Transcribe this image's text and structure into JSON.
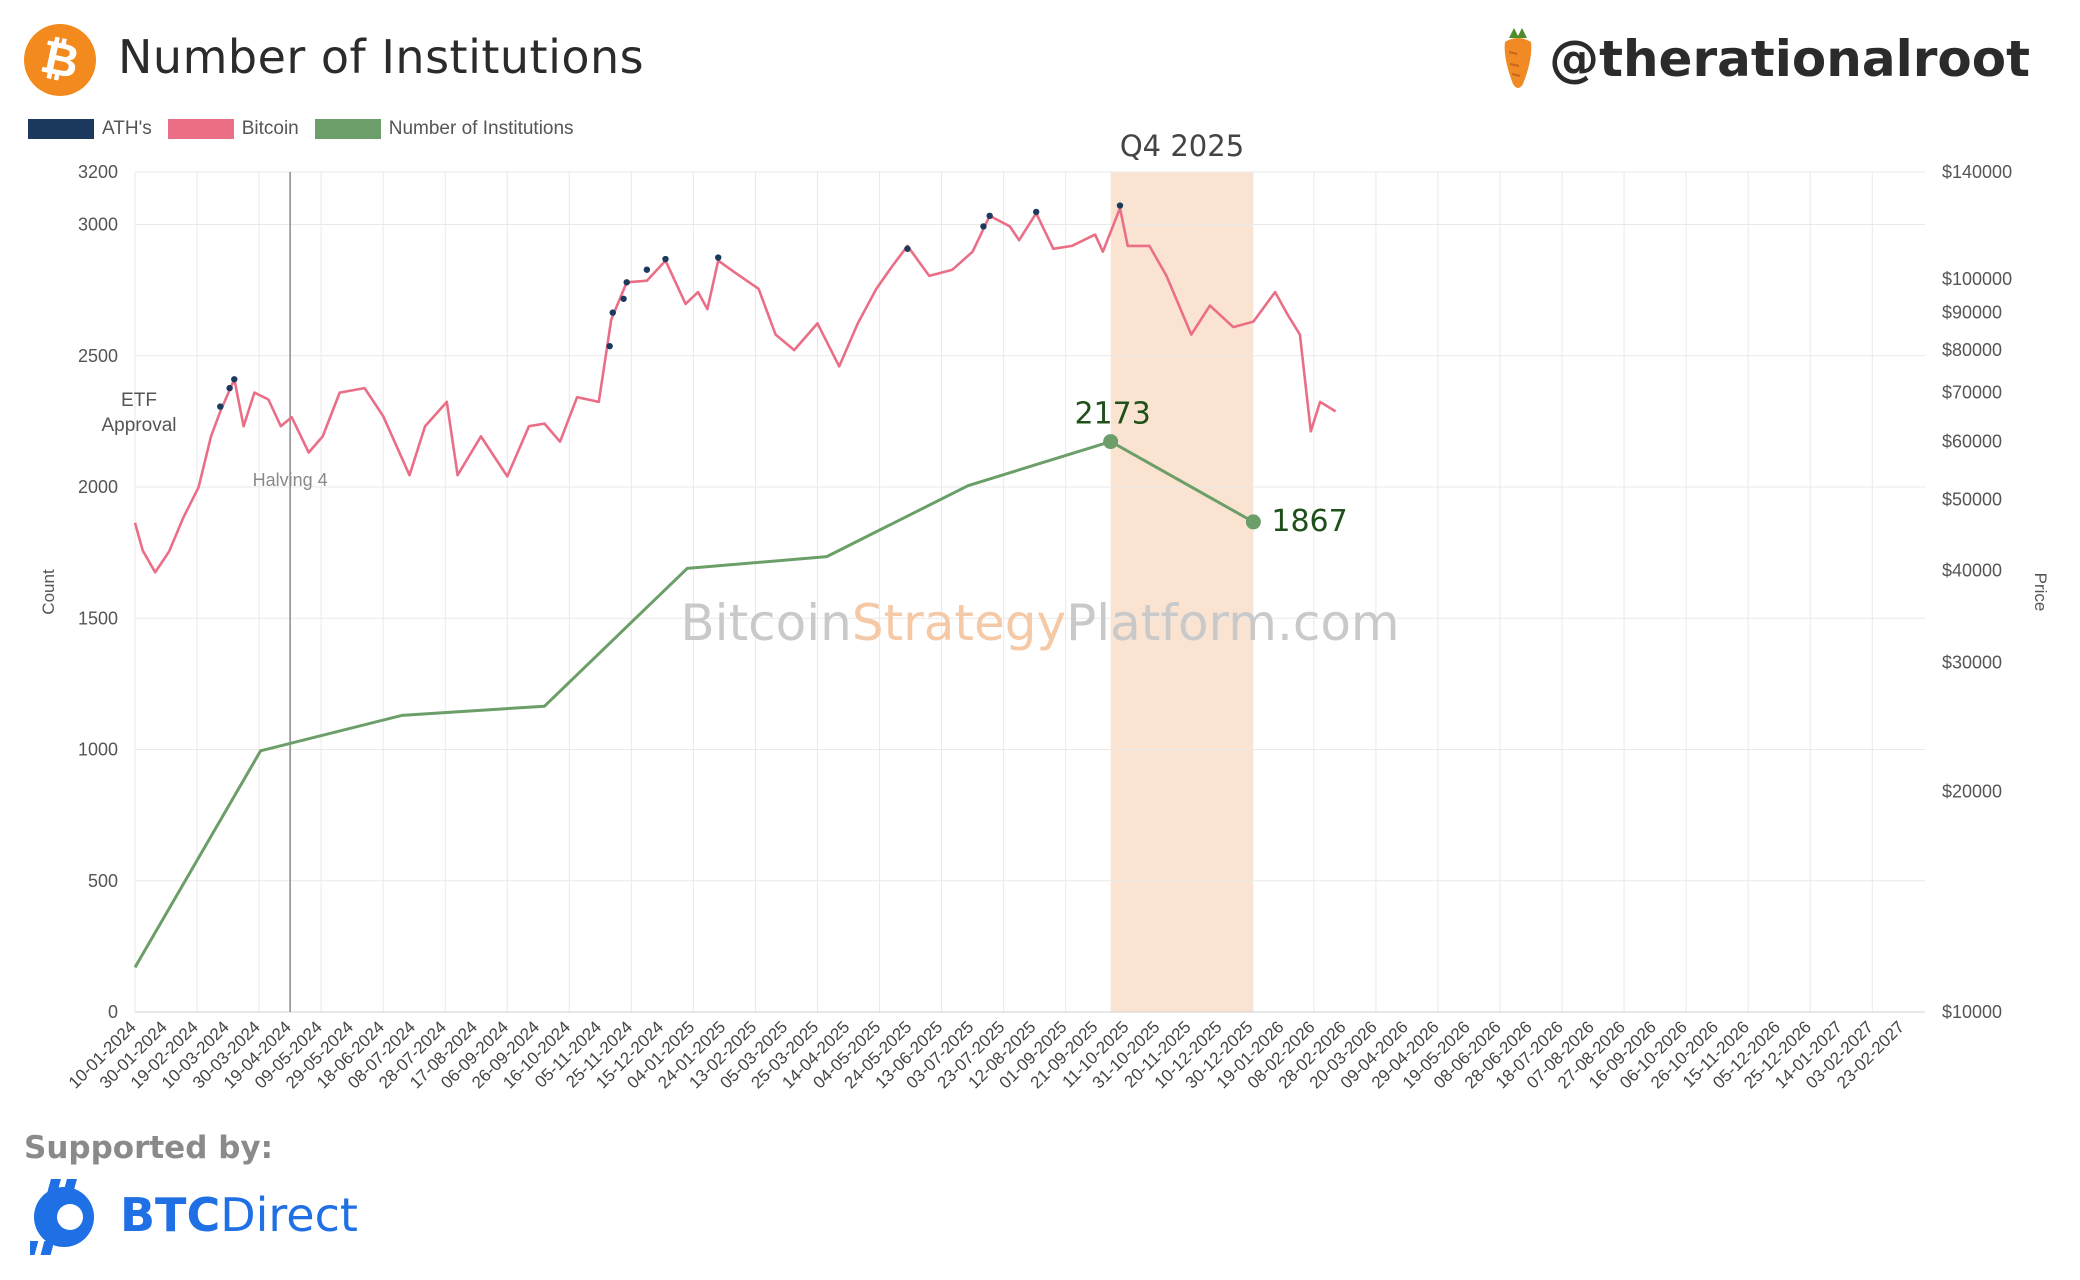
{
  "header": {
    "title": "Number of Institutions",
    "handle": "@therationalroot"
  },
  "legend": [
    {
      "label": "ATH's",
      "color": "#1b3a5e"
    },
    {
      "label": "Bitcoin",
      "color": "#ea6f86"
    },
    {
      "label": "Number of Institutions",
      "color": "#6b9e68"
    }
  ],
  "footer": {
    "supported_label": "Supported by:",
    "brand_bold": "BTC",
    "brand_rest": "Direct"
  },
  "chart_data": {
    "type": "line",
    "watermark": {
      "part1": "Bitcoin",
      "part2": "Strategy",
      "part3": "Platform.com"
    },
    "ylabel_left": "Count",
    "ylabel_right": "Price",
    "ylim_left": [
      0,
      3200
    ],
    "left_ticks": [
      0,
      500,
      1000,
      1500,
      2000,
      2500,
      3000,
      3200
    ],
    "ylim_right": [
      10000,
      140000
    ],
    "right_scale": "log",
    "right_ticks": [
      {
        "value": 10000,
        "label": "$10000"
      },
      {
        "value": 20000,
        "label": "$20000"
      },
      {
        "value": 30000,
        "label": "$30000"
      },
      {
        "value": 40000,
        "label": "$40000"
      },
      {
        "value": 50000,
        "label": "$50000"
      },
      {
        "value": 60000,
        "label": "$60000"
      },
      {
        "value": 70000,
        "label": "$70000"
      },
      {
        "value": 80000,
        "label": "$80000"
      },
      {
        "value": 90000,
        "label": "$90000"
      },
      {
        "value": 100000,
        "label": "$100000"
      },
      {
        "value": 140000,
        "label": "$140000"
      }
    ],
    "x_ticks": [
      "10-01-2024",
      "30-01-2024",
      "19-02-2024",
      "10-03-2024",
      "30-03-2024",
      "19-04-2024",
      "09-05-2024",
      "29-05-2024",
      "18-06-2024",
      "08-07-2024",
      "28-07-2024",
      "17-08-2024",
      "06-09-2024",
      "26-09-2024",
      "16-10-2024",
      "05-11-2024",
      "25-11-2024",
      "15-12-2024",
      "04-01-2025",
      "24-01-2025",
      "13-02-2025",
      "05-03-2025",
      "25-03-2025",
      "14-04-2025",
      "04-05-2025",
      "24-05-2025",
      "13-06-2025",
      "03-07-2025",
      "23-07-2025",
      "12-08-2025",
      "01-09-2025",
      "21-09-2025",
      "11-10-2025",
      "31-10-2025",
      "20-11-2025",
      "10-12-2025",
      "30-12-2025",
      "19-01-2026",
      "08-02-2026",
      "28-02-2026",
      "20-03-2026",
      "09-04-2026",
      "29-04-2026",
      "19-05-2026",
      "08-06-2026",
      "28-06-2026",
      "18-07-2026",
      "07-08-2026",
      "27-08-2026",
      "16-09-2026",
      "06-10-2026",
      "26-10-2026",
      "15-11-2026",
      "05-12-2026",
      "25-12-2026",
      "14-01-2027",
      "03-02-2027",
      "23-02-2027"
    ],
    "x_range": [
      "10-01-2024",
      "09-03-2027"
    ],
    "grid": true,
    "series": [
      {
        "name": "Number of Institutions",
        "axis": "left",
        "color": "#6b9e68",
        "points": [
          {
            "x": "10-01-2024",
            "y": 170
          },
          {
            "x": "31-03-2024",
            "y": 995
          },
          {
            "x": "30-06-2024",
            "y": 1130
          },
          {
            "x": "30-09-2024",
            "y": 1165
          },
          {
            "x": "31-12-2024",
            "y": 1690
          },
          {
            "x": "31-03-2025",
            "y": 1735
          },
          {
            "x": "30-06-2025",
            "y": 2005
          },
          {
            "x": "30-09-2025",
            "y": 2173
          },
          {
            "x": "31-12-2025",
            "y": 1867
          }
        ]
      },
      {
        "name": "Bitcoin",
        "axis": "right",
        "color": "#ea6f86",
        "points": [
          {
            "x": "10-01-2024",
            "y": 46500
          },
          {
            "x": "15-01-2024",
            "y": 42600
          },
          {
            "x": "23-01-2024",
            "y": 39800
          },
          {
            "x": "01-02-2024",
            "y": 42500
          },
          {
            "x": "10-02-2024",
            "y": 47200
          },
          {
            "x": "20-02-2024",
            "y": 52000
          },
          {
            "x": "28-02-2024",
            "y": 61000
          },
          {
            "x": "05-03-2024",
            "y": 66000
          },
          {
            "x": "14-03-2024",
            "y": 73000
          },
          {
            "x": "20-03-2024",
            "y": 63000
          },
          {
            "x": "27-03-2024",
            "y": 70000
          },
          {
            "x": "05-04-2024",
            "y": 68500
          },
          {
            "x": "13-04-2024",
            "y": 63000
          },
          {
            "x": "20-04-2024",
            "y": 64800
          },
          {
            "x": "01-05-2024",
            "y": 58000
          },
          {
            "x": "10-05-2024",
            "y": 61000
          },
          {
            "x": "21-05-2024",
            "y": 70000
          },
          {
            "x": "06-06-2024",
            "y": 71000
          },
          {
            "x": "18-06-2024",
            "y": 65000
          },
          {
            "x": "05-07-2024",
            "y": 54000
          },
          {
            "x": "15-07-2024",
            "y": 63000
          },
          {
            "x": "29-07-2024",
            "y": 68000
          },
          {
            "x": "05-08-2024",
            "y": 54000
          },
          {
            "x": "20-08-2024",
            "y": 61000
          },
          {
            "x": "06-09-2024",
            "y": 53800
          },
          {
            "x": "20-09-2024",
            "y": 63000
          },
          {
            "x": "30-09-2024",
            "y": 63500
          },
          {
            "x": "10-10-2024",
            "y": 60000
          },
          {
            "x": "21-10-2024",
            "y": 69000
          },
          {
            "x": "04-11-2024",
            "y": 68000
          },
          {
            "x": "12-11-2024",
            "y": 88000
          },
          {
            "x": "22-11-2024",
            "y": 99000
          },
          {
            "x": "05-12-2024",
            "y": 99500
          },
          {
            "x": "17-12-2024",
            "y": 106000
          },
          {
            "x": "30-12-2024",
            "y": 92500
          },
          {
            "x": "07-01-2025",
            "y": 96000
          },
          {
            "x": "13-01-2025",
            "y": 91000
          },
          {
            "x": "20-01-2025",
            "y": 106000
          },
          {
            "x": "31-01-2025",
            "y": 102000
          },
          {
            "x": "15-02-2025",
            "y": 97000
          },
          {
            "x": "26-02-2025",
            "y": 84000
          },
          {
            "x": "10-03-2025",
            "y": 80000
          },
          {
            "x": "25-03-2025",
            "y": 87000
          },
          {
            "x": "08-04-2025",
            "y": 76000
          },
          {
            "x": "20-04-2025",
            "y": 87000
          },
          {
            "x": "02-05-2025",
            "y": 97000
          },
          {
            "x": "12-05-2025",
            "y": 104000
          },
          {
            "x": "22-05-2025",
            "y": 111000
          },
          {
            "x": "05-06-2025",
            "y": 101000
          },
          {
            "x": "20-06-2025",
            "y": 103000
          },
          {
            "x": "03-07-2025",
            "y": 109000
          },
          {
            "x": "14-07-2025",
            "y": 122000
          },
          {
            "x": "27-07-2025",
            "y": 118000
          },
          {
            "x": "02-08-2025",
            "y": 113000
          },
          {
            "x": "13-08-2025",
            "y": 123000
          },
          {
            "x": "24-08-2025",
            "y": 110000
          },
          {
            "x": "05-09-2025",
            "y": 111000
          },
          {
            "x": "20-09-2025",
            "y": 115000
          },
          {
            "x": "25-09-2025",
            "y": 109000
          },
          {
            "x": "06-10-2025",
            "y": 125000
          },
          {
            "x": "11-10-2025",
            "y": 111000
          },
          {
            "x": "25-10-2025",
            "y": 111000
          },
          {
            "x": "05-11-2025",
            "y": 101000
          },
          {
            "x": "21-11-2025",
            "y": 84000
          },
          {
            "x": "03-12-2025",
            "y": 92000
          },
          {
            "x": "18-12-2025",
            "y": 86000
          },
          {
            "x": "31-12-2025",
            "y": 87500
          },
          {
            "x": "14-01-2026",
            "y": 96000
          },
          {
            "x": "22-01-2026",
            "y": 89500
          },
          {
            "x": "30-01-2026",
            "y": 84000
          },
          {
            "x": "06-02-2026",
            "y": 62000
          },
          {
            "x": "12-02-2026",
            "y": 68000
          },
          {
            "x": "22-02-2026",
            "y": 66000
          }
        ]
      },
      {
        "name": "ATH's",
        "axis": "right",
        "color": "#1b3a5e",
        "type": "scatter",
        "points": [
          {
            "x": "05-03-2024",
            "y": 67000
          },
          {
            "x": "11-03-2024",
            "y": 71000
          },
          {
            "x": "14-03-2024",
            "y": 73000
          },
          {
            "x": "11-11-2024",
            "y": 81000
          },
          {
            "x": "13-11-2024",
            "y": 90000
          },
          {
            "x": "20-11-2024",
            "y": 94000
          },
          {
            "x": "22-11-2024",
            "y": 99000
          },
          {
            "x": "05-12-2024",
            "y": 103000
          },
          {
            "x": "17-12-2024",
            "y": 106500
          },
          {
            "x": "20-01-2025",
            "y": 107000
          },
          {
            "x": "22-05-2025",
            "y": 110000
          },
          {
            "x": "10-07-2025",
            "y": 118000
          },
          {
            "x": "14-07-2025",
            "y": 122000
          },
          {
            "x": "13-08-2025",
            "y": 123500
          },
          {
            "x": "06-10-2025",
            "y": 126000
          }
        ]
      }
    ],
    "annotations": [
      {
        "type": "vline",
        "x": "19-04-2024",
        "label": "Halving 4"
      },
      {
        "type": "text",
        "x": "10-01-2024",
        "text": "ETF\nApproval"
      },
      {
        "type": "band",
        "x_start": "30-09-2025",
        "x_end": "31-12-2025",
        "label": "Q4 2025",
        "color": "#fbe3d1"
      },
      {
        "type": "point_label",
        "x": "30-09-2025",
        "y": 2173,
        "text": "2173"
      },
      {
        "type": "point_label",
        "x": "31-12-2025",
        "y": 1867,
        "text": "1867"
      }
    ]
  }
}
